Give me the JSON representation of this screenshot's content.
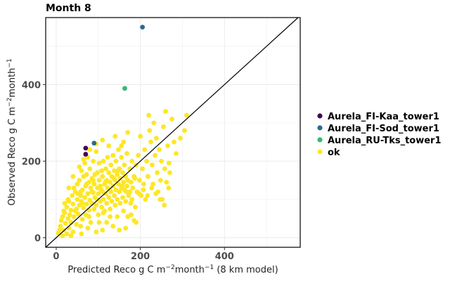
{
  "chart_data": {
    "type": "scatter",
    "title": "Month 8",
    "xlabel": {
      "parts": [
        {
          "t": "Predicted Reco g C m"
        },
        {
          "t": "−2",
          "sup": true
        },
        {
          "t": "month"
        },
        {
          "t": "−1",
          "sup": true
        },
        {
          "t": " (8 km model)"
        }
      ]
    },
    "ylabel": {
      "parts": [
        {
          "t": "Observed Reco g C m"
        },
        {
          "t": "−2",
          "sup": true
        },
        {
          "t": "month"
        },
        {
          "t": "−1",
          "sup": true
        }
      ]
    },
    "xlim": [
      -25,
      580
    ],
    "ylim": [
      -25,
      575
    ],
    "xticks": [
      0,
      200,
      400
    ],
    "yticks": [
      0,
      200,
      400
    ],
    "grid": true,
    "identity_line": true,
    "legend_position": "right",
    "series": [
      {
        "name": "Aurela_FI-Kaa_tower1",
        "color": "#440154",
        "points": [
          [
            70,
            218
          ],
          [
            70,
            234
          ]
        ]
      },
      {
        "name": "Aurela_FI-Sod_tower1",
        "color": "#31688E",
        "points": [
          [
            90,
            247
          ],
          [
            205,
            550
          ]
        ]
      },
      {
        "name": "Aurela_RU-Tks_tower1",
        "color": "#35B779",
        "points": [
          [
            163,
            390
          ]
        ]
      },
      {
        "name": "ok",
        "color": "#FDE725",
        "points": [
          [
            5,
            12
          ],
          [
            10,
            30
          ],
          [
            12,
            45
          ],
          [
            15,
            55
          ],
          [
            18,
            20
          ],
          [
            20,
            65
          ],
          [
            22,
            38
          ],
          [
            25,
            80
          ],
          [
            25,
            10
          ],
          [
            28,
            50
          ],
          [
            30,
            95
          ],
          [
            30,
            25
          ],
          [
            32,
            60
          ],
          [
            35,
            72
          ],
          [
            35,
            40
          ],
          [
            38,
            110
          ],
          [
            40,
            88
          ],
          [
            40,
            15
          ],
          [
            42,
            55
          ],
          [
            45,
            120
          ],
          [
            45,
            70
          ],
          [
            48,
            35
          ],
          [
            50,
            100
          ],
          [
            50,
            140
          ],
          [
            52,
            62
          ],
          [
            55,
            85
          ],
          [
            55,
            150
          ],
          [
            58,
            110
          ],
          [
            58,
            30
          ],
          [
            60,
            95
          ],
          [
            60,
            175
          ],
          [
            62,
            125
          ],
          [
            62,
            48
          ],
          [
            65,
            160
          ],
          [
            65,
            78
          ],
          [
            68,
            105
          ],
          [
            68,
            195
          ],
          [
            70,
            135
          ],
          [
            70,
            60
          ],
          [
            72,
            88
          ],
          [
            72,
            165
          ],
          [
            75,
            115
          ],
          [
            75,
            210
          ],
          [
            78,
            145
          ],
          [
            78,
            72
          ],
          [
            80,
            98
          ],
          [
            80,
            180
          ],
          [
            82,
            130
          ],
          [
            82,
            40
          ],
          [
            85,
            155
          ],
          [
            85,
            90
          ],
          [
            88,
            200
          ],
          [
            88,
            118
          ],
          [
            90,
            75
          ],
          [
            90,
            140
          ],
          [
            92,
            165
          ],
          [
            92,
            105
          ],
          [
            95,
            225
          ],
          [
            95,
            85
          ],
          [
            98,
            130
          ],
          [
            98,
            170
          ],
          [
            100,
            115
          ],
          [
            100,
            60
          ],
          [
            102,
            150
          ],
          [
            102,
            195
          ],
          [
            105,
            95
          ],
          [
            105,
            135
          ],
          [
            108,
            175
          ],
          [
            108,
            80
          ],
          [
            110,
            120
          ],
          [
            110,
            160
          ],
          [
            112,
            200
          ],
          [
            112,
            100
          ],
          [
            115,
            140
          ],
          [
            115,
            70
          ],
          [
            118,
            180
          ],
          [
            118,
            115
          ],
          [
            120,
            150
          ],
          [
            120,
            90
          ],
          [
            122,
            130
          ],
          [
            122,
            210
          ],
          [
            125,
            170
          ],
          [
            125,
            105
          ],
          [
            128,
            145
          ],
          [
            128,
            75
          ],
          [
            130,
            120
          ],
          [
            130,
            190
          ],
          [
            132,
            160
          ],
          [
            132,
            95
          ],
          [
            135,
            135
          ],
          [
            135,
            215
          ],
          [
            138,
            110
          ],
          [
            138,
            175
          ],
          [
            140,
            150
          ],
          [
            140,
            85
          ],
          [
            142,
            125
          ],
          [
            142,
            200
          ],
          [
            145,
            165
          ],
          [
            145,
            100
          ],
          [
            148,
            140
          ],
          [
            148,
            230
          ],
          [
            150,
            180
          ],
          [
            150,
            120
          ],
          [
            152,
            155
          ],
          [
            152,
            90
          ],
          [
            155,
            130
          ],
          [
            155,
            210
          ],
          [
            158,
            170
          ],
          [
            158,
            105
          ],
          [
            160,
            145
          ],
          [
            160,
            250
          ],
          [
            162,
            125
          ],
          [
            162,
            190
          ],
          [
            165,
            160
          ],
          [
            165,
            95
          ],
          [
            168,
            220
          ],
          [
            168,
            135
          ],
          [
            170,
            275
          ],
          [
            170,
            150
          ],
          [
            172,
            110
          ],
          [
            175,
            180
          ],
          [
            175,
            120
          ],
          [
            178,
            145
          ],
          [
            180,
            200
          ],
          [
            180,
            100
          ],
          [
            182,
            130
          ],
          [
            185,
            160
          ],
          [
            188,
            80
          ],
          [
            190,
            190
          ],
          [
            192,
            120
          ],
          [
            195,
            215
          ],
          [
            198,
            150
          ],
          [
            200,
            265
          ],
          [
            202,
            110
          ],
          [
            205,
            180
          ],
          [
            208,
            140
          ],
          [
            210,
            230
          ],
          [
            212,
            100
          ],
          [
            215,
            200
          ],
          [
            218,
            160
          ],
          [
            220,
            320
          ],
          [
            222,
            280
          ],
          [
            225,
            250
          ],
          [
            228,
            190
          ],
          [
            230,
            140
          ],
          [
            232,
            300
          ],
          [
            235,
            215
          ],
          [
            238,
            260
          ],
          [
            240,
            170
          ],
          [
            242,
            120
          ],
          [
            245,
            230
          ],
          [
            248,
            150
          ],
          [
            250,
            200
          ],
          [
            252,
            100
          ],
          [
            255,
            290
          ],
          [
            258,
            180
          ],
          [
            260,
            330
          ],
          [
            262,
            145
          ],
          [
            265,
            240
          ],
          [
            268,
            195
          ],
          [
            270,
            170
          ],
          [
            275,
            310
          ],
          [
            280,
            250
          ],
          [
            285,
            220
          ],
          [
            295,
            260
          ],
          [
            305,
            280
          ],
          [
            310,
            320
          ],
          [
            15,
            5
          ],
          [
            20,
            90
          ],
          [
            30,
            130
          ],
          [
            40,
            160
          ],
          [
            55,
            185
          ],
          [
            65,
            205
          ],
          [
            80,
            230
          ],
          [
            95,
            245
          ],
          [
            110,
            255
          ],
          [
            125,
            240
          ],
          [
            140,
            265
          ],
          [
            155,
            240
          ],
          [
            48,
            75
          ],
          [
            58,
            120
          ],
          [
            78,
            55
          ],
          [
            88,
            150
          ],
          [
            102,
            40
          ],
          [
            112,
            65
          ],
          [
            128,
            55
          ],
          [
            145,
            55
          ],
          [
            160,
            70
          ],
          [
            170,
            55
          ],
          [
            178,
            60
          ],
          [
            185,
            45
          ],
          [
            190,
            40
          ],
          [
            60,
            10
          ],
          [
            75,
            25
          ],
          [
            95,
            15
          ],
          [
            110,
            20
          ],
          [
            35,
            5
          ],
          [
            8,
            20
          ],
          [
            18,
            70
          ],
          [
            28,
            100
          ],
          [
            42,
            130
          ],
          [
            52,
            115
          ],
          [
            62,
            90
          ],
          [
            72,
            140
          ],
          [
            85,
            120
          ],
          [
            97,
            100
          ],
          [
            107,
            125
          ],
          [
            117,
            145
          ],
          [
            127,
            125
          ],
          [
            137,
            155
          ],
          [
            147,
            175
          ],
          [
            157,
            135
          ],
          [
            167,
            120
          ],
          [
            177,
            90
          ],
          [
            187,
            155
          ],
          [
            197,
            115
          ],
          [
            207,
            125
          ],
          [
            217,
            110
          ],
          [
            227,
            130
          ],
          [
            237,
            115
          ],
          [
            247,
            100
          ],
          [
            257,
            85
          ],
          [
            267,
            130
          ],
          [
            120,
            40
          ],
          [
            135,
            30
          ],
          [
            150,
            20
          ],
          [
            165,
            25
          ]
        ]
      }
    ]
  }
}
